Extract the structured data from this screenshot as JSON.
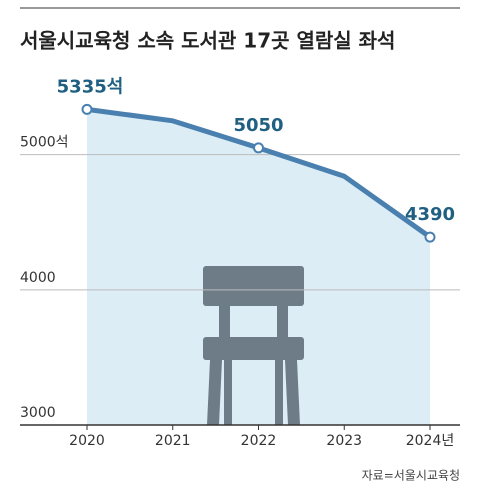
{
  "chart_data": {
    "type": "line",
    "title": "서울시교육청 소속 도서관 17곳 열람실 좌석",
    "categories": [
      "2020",
      "2021",
      "2022",
      "2023",
      "2024년"
    ],
    "series": [
      {
        "color": "#4a80b0",
        "values": [
          5335,
          5250,
          5050,
          4840,
          4390
        ],
        "value_labels": [
          "5335석",
          null,
          "5050",
          null,
          "4390"
        ]
      }
    ],
    "area_color": "#dcedf5",
    "ylim": [
      3000,
      5700
    ],
    "yticks": [
      3000,
      4000,
      {
        "value": 5000,
        "label": "5000석"
      }
    ],
    "grid": true,
    "source": "자료=서울시교육청"
  }
}
